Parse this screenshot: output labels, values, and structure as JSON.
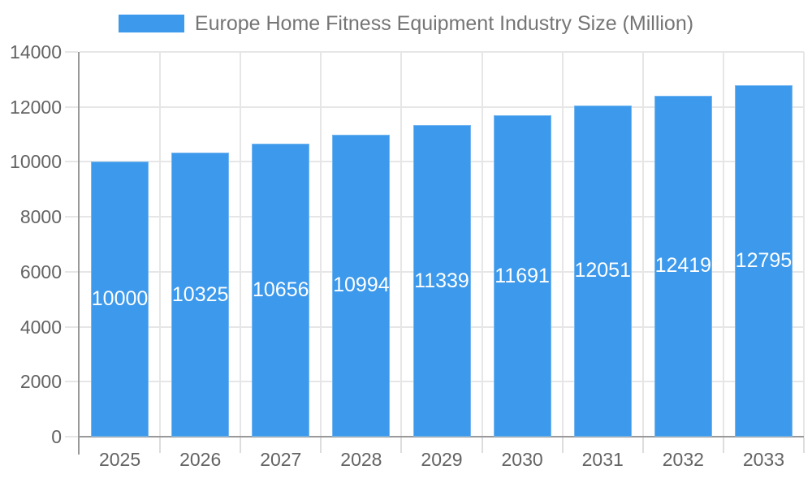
{
  "legend": {
    "label": "Europe Home Fitness Equipment Industry Size (Million)"
  },
  "chart_data": {
    "type": "bar",
    "title": "Europe Home Fitness Equipment Industry Size (Million)",
    "categories": [
      "2025",
      "2026",
      "2027",
      "2028",
      "2029",
      "2030",
      "2031",
      "2032",
      "2033"
    ],
    "values": [
      10000,
      10325,
      10656,
      10994,
      11339,
      11691,
      12051,
      12419,
      12795
    ],
    "xlabel": "",
    "ylabel": "",
    "ylim": [
      0,
      14000
    ],
    "yticks": [
      0,
      2000,
      4000,
      6000,
      8000,
      10000,
      12000,
      14000
    ],
    "bar_labels_inside": true,
    "legend_position": "top",
    "grid": true,
    "colors": {
      "bar": "#3c99eb",
      "grid": "#e6e6e6",
      "axis": "#999999",
      "axis_minor_tick": "#dddddd",
      "tick_label": "#636363",
      "title": "#757575",
      "bar_label": "#ffffff",
      "background": "#ffffff"
    }
  }
}
